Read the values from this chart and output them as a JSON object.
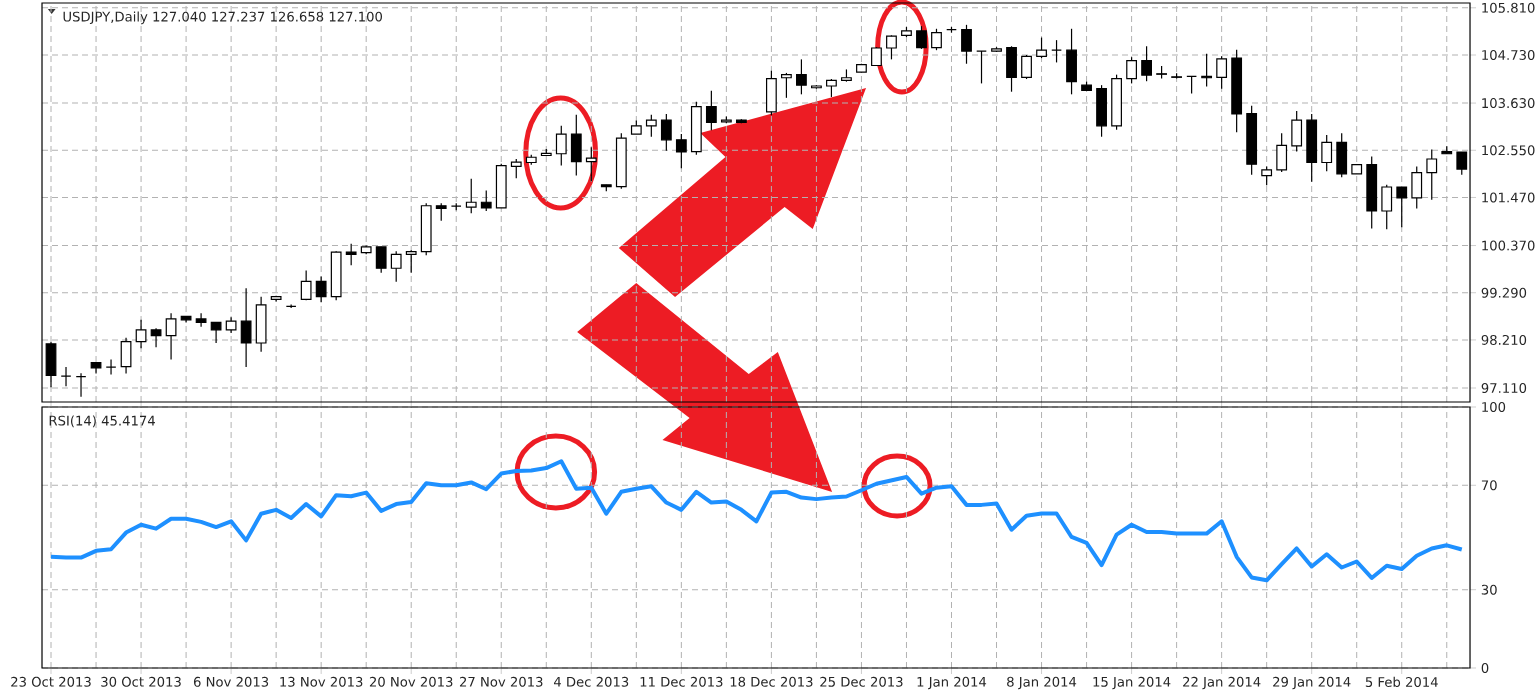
{
  "chart_data": [
    {
      "type": "candlestick",
      "title": "USDJPY,Daily  127.040 127.237 126.658 127.100",
      "color": "#000000",
      "categories": [
        null,
        null,
        null,
        null,
        null,
        null,
        null,
        null,
        null,
        null,
        null,
        null,
        null,
        null,
        null,
        null,
        null,
        null,
        null,
        null,
        null,
        null,
        null,
        null,
        null,
        null,
        null,
        null,
        null,
        null,
        null,
        null,
        null,
        null,
        null,
        null,
        null,
        null,
        null,
        null,
        null,
        null,
        null,
        null,
        null,
        null,
        null,
        null,
        null,
        null,
        null,
        null,
        null,
        null,
        null,
        null,
        null,
        null,
        null,
        null,
        null,
        null,
        null,
        null,
        null,
        null,
        null,
        null,
        null,
        null,
        null,
        null,
        null,
        null,
        null,
        null,
        null,
        null,
        null,
        null,
        null,
        null,
        null,
        null,
        null,
        null,
        null,
        null,
        null,
        null,
        null,
        null,
        null,
        null,
        null
      ],
      "ohlc": [
        [
          98.12,
          98.16,
          97.13,
          97.4
        ],
        [
          97.38,
          97.59,
          97.15,
          97.38
        ],
        [
          97.37,
          97.45,
          96.91,
          97.37
        ],
        [
          97.69,
          97.69,
          97.44,
          97.57
        ],
        [
          97.59,
          97.76,
          97.42,
          97.59
        ],
        [
          97.6,
          98.26,
          97.44,
          98.17
        ],
        [
          98.17,
          98.67,
          98.02,
          98.44
        ],
        [
          98.44,
          98.48,
          98.04,
          98.31
        ],
        [
          98.31,
          98.82,
          97.76,
          98.69
        ],
        [
          98.75,
          98.75,
          98.61,
          98.67
        ],
        [
          98.69,
          98.82,
          98.51,
          98.61
        ],
        [
          98.61,
          98.61,
          98.14,
          98.44
        ],
        [
          98.44,
          98.73,
          98.37,
          98.64
        ],
        [
          98.64,
          99.39,
          97.59,
          98.14
        ],
        [
          98.14,
          99.2,
          97.94,
          99.01
        ],
        [
          99.14,
          99.22,
          99.09,
          99.2
        ],
        [
          98.98,
          99.02,
          98.94,
          98.98
        ],
        [
          99.14,
          99.8,
          99.12,
          99.55
        ],
        [
          99.55,
          99.66,
          99.07,
          99.2
        ],
        [
          99.2,
          100.24,
          99.12,
          100.22
        ],
        [
          100.22,
          100.41,
          99.92,
          100.17
        ],
        [
          100.21,
          100.37,
          100.17,
          100.34
        ],
        [
          100.34,
          100.34,
          99.75,
          99.85
        ],
        [
          99.85,
          100.24,
          99.54,
          100.17
        ],
        [
          100.17,
          100.26,
          99.75,
          100.23
        ],
        [
          100.23,
          101.34,
          100.15,
          101.28
        ],
        [
          101.28,
          101.34,
          100.94,
          101.22
        ],
        [
          101.27,
          101.34,
          101.18,
          101.27
        ],
        [
          101.25,
          101.9,
          101.11,
          101.36
        ],
        [
          101.36,
          101.63,
          101.16,
          101.23
        ],
        [
          101.23,
          102.24,
          101.23,
          102.2
        ],
        [
          102.18,
          102.35,
          101.91,
          102.28
        ],
        [
          102.27,
          102.45,
          102.22,
          102.39
        ],
        [
          102.43,
          102.58,
          102.43,
          102.48
        ],
        [
          102.47,
          103.11,
          102.2,
          102.92
        ],
        [
          102.92,
          103.36,
          101.97,
          102.29
        ],
        [
          102.29,
          102.62,
          101.84,
          102.37
        ],
        [
          101.76,
          101.76,
          101.61,
          101.72
        ],
        [
          101.72,
          102.94,
          101.67,
          102.83
        ],
        [
          102.92,
          103.23,
          102.92,
          103.11
        ],
        [
          103.11,
          103.36,
          102.86,
          103.24
        ],
        [
          103.24,
          103.38,
          102.54,
          102.79
        ],
        [
          102.79,
          102.92,
          102.14,
          102.51
        ],
        [
          102.52,
          103.66,
          102.45,
          103.55
        ],
        [
          103.55,
          103.91,
          103.01,
          103.19
        ],
        [
          103.2,
          103.32,
          103.17,
          103.24
        ],
        [
          103.24,
          103.26,
          103.17,
          103.19
        ],
        null,
        [
          103.43,
          104.37,
          103.35,
          104.19
        ],
        [
          104.21,
          104.32,
          103.75,
          104.28
        ],
        [
          104.28,
          104.63,
          103.83,
          104.04
        ],
        [
          103.98,
          104.04,
          103.96,
          104.02
        ],
        [
          104.02,
          104.18,
          103.77,
          104.15
        ],
        [
          104.15,
          104.4,
          104.12,
          104.21
        ],
        [
          104.34,
          104.53,
          104.33,
          104.51
        ],
        [
          104.49,
          104.91,
          104.48,
          104.89
        ],
        [
          104.89,
          105.18,
          104.63,
          105.16
        ],
        [
          105.18,
          105.37,
          105.14,
          105.28
        ],
        [
          105.28,
          105.39,
          104.87,
          104.9
        ],
        [
          104.9,
          105.33,
          104.84,
          105.24
        ],
        [
          105.31,
          105.37,
          105.24,
          105.31
        ],
        [
          105.31,
          105.42,
          104.53,
          104.82
        ],
        [
          104.82,
          104.82,
          104.08,
          104.82
        ],
        [
          104.82,
          104.91,
          104.8,
          104.87
        ],
        [
          104.9,
          104.93,
          103.89,
          104.22
        ],
        [
          104.22,
          104.73,
          104.18,
          104.7
        ],
        [
          104.7,
          105.13,
          104.66,
          104.84
        ],
        [
          104.84,
          105.07,
          104.56,
          104.84
        ],
        [
          104.84,
          105.33,
          103.83,
          104.12
        ],
        [
          104.04,
          104.12,
          103.92,
          103.92
        ],
        [
          103.96,
          104.04,
          102.86,
          103.11
        ],
        [
          103.11,
          104.28,
          103.02,
          104.19
        ],
        [
          104.19,
          104.68,
          104.08,
          104.6
        ],
        [
          104.6,
          104.93,
          104.13,
          104.27
        ],
        [
          104.3,
          104.48,
          104.19,
          104.29
        ],
        [
          104.23,
          104.31,
          104.19,
          104.22
        ],
        [
          104.24,
          104.25,
          103.85,
          104.24
        ],
        [
          104.24,
          104.76,
          104.01,
          104.21
        ],
        [
          104.22,
          104.7,
          103.96,
          104.64
        ],
        [
          104.66,
          104.85,
          102.96,
          103.38
        ],
        [
          103.39,
          103.57,
          101.99,
          102.23
        ],
        [
          101.97,
          102.18,
          101.75,
          102.1
        ],
        [
          102.1,
          102.94,
          102.05,
          102.66
        ],
        [
          102.65,
          103.45,
          102.52,
          103.24
        ],
        [
          103.24,
          103.38,
          101.83,
          102.27
        ],
        [
          102.27,
          102.9,
          102.07,
          102.73
        ],
        [
          102.73,
          102.94,
          101.93,
          102.01
        ],
        [
          102.01,
          102.22,
          102.01,
          102.22
        ],
        [
          102.22,
          102.41,
          100.76,
          101.16
        ],
        [
          101.16,
          101.76,
          100.74,
          101.71
        ],
        [
          101.71,
          101.71,
          100.79,
          101.46
        ],
        [
          101.46,
          102.18,
          101.22,
          102.04
        ],
        [
          102.04,
          102.57,
          101.42,
          102.35
        ],
        [
          102.52,
          102.64,
          102.47,
          102.47
        ],
        [
          102.51,
          102.51,
          101.99,
          102.12
        ]
      ],
      "ylim": [
        96.79,
        105.92
      ],
      "yticks": [
        {
          "value": 97.11,
          "label": "97.110"
        },
        {
          "value": 98.21,
          "label": "98.210"
        },
        {
          "value": 99.29,
          "label": "99.290"
        },
        {
          "value": 100.37,
          "label": "100.370"
        },
        {
          "value": 101.47,
          "label": "101.470"
        },
        {
          "value": 102.55,
          "label": "102.550"
        },
        {
          "value": 103.63,
          "label": "103.630"
        },
        {
          "value": 104.73,
          "label": "104.730"
        },
        {
          "value": 105.81,
          "label": "105.810"
        }
      ],
      "grid": true,
      "tick_labels": "y"
    },
    {
      "type": "line",
      "title": "RSI(14) 45.4174",
      "categories": [
        "23 Oct 2013",
        null,
        null,
        null,
        null,
        null,
        "30 Oct 2013",
        null,
        null,
        null,
        null,
        null,
        "6 Nov 2013",
        null,
        null,
        null,
        null,
        null,
        "13 Nov 2013",
        null,
        null,
        null,
        null,
        null,
        "20 Nov 2013",
        null,
        null,
        null,
        null,
        null,
        "27 Nov 2013",
        null,
        null,
        null,
        null,
        null,
        "4 Dec 2013",
        null,
        null,
        null,
        null,
        null,
        "11 Dec 2013",
        null,
        null,
        null,
        null,
        null,
        "18 Dec 2013",
        null,
        null,
        null,
        null,
        null,
        "25 Dec 2013",
        null,
        null,
        null,
        null,
        null,
        "1 Jan 2014",
        null,
        null,
        null,
        null,
        null,
        "8 Jan 2014",
        null,
        null,
        null,
        null,
        null,
        "15 Jan 2014",
        null,
        null,
        null,
        null,
        null,
        "22 Jan 2014",
        null,
        null,
        null,
        null,
        null,
        "29 Jan 2014",
        null,
        null,
        null,
        null,
        null,
        "5 Feb 2014",
        null,
        null,
        null,
        null
      ],
      "series": [
        {
          "color": "#1e90ff",
          "values": [
            42.6,
            42.3,
            42.3,
            44.9,
            45.5,
            51.9,
            54.9,
            53.4,
            57.2,
            57.2,
            56.0,
            54.0,
            56.2,
            48.9,
            59.1,
            60.6,
            57.5,
            62.8,
            58.1,
            66.2,
            65.8,
            67.2,
            60.2,
            62.8,
            63.6,
            70.8,
            70.0,
            70.0,
            71.1,
            68.5,
            74.5,
            75.5,
            75.7,
            76.6,
            79.2,
            68.7,
            69.1,
            59.1,
            67.5,
            68.7,
            69.6,
            63.4,
            60.6,
            67.5,
            63.4,
            63.8,
            60.6,
            56.2,
            67.2,
            67.5,
            65.3,
            64.7,
            65.3,
            65.7,
            68.1,
            70.6,
            71.9,
            73.2,
            66.8,
            69.1,
            69.6,
            62.5,
            62.5,
            63.0,
            53.0,
            58.3,
            59.2,
            59.2,
            50.2,
            47.9,
            39.4,
            51.1,
            54.9,
            52.1,
            52.1,
            51.5,
            51.5,
            51.5,
            56.2,
            42.6,
            34.7,
            33.6,
            39.8,
            45.8,
            38.9,
            43.6,
            38.5,
            40.8,
            34.5,
            39.2,
            37.9,
            43.0,
            45.8,
            47.0,
            45.4
          ]
        }
      ],
      "ylim": [
        0,
        100
      ],
      "yticks": [
        0,
        30,
        70,
        100
      ],
      "grid": true
    }
  ]
}
